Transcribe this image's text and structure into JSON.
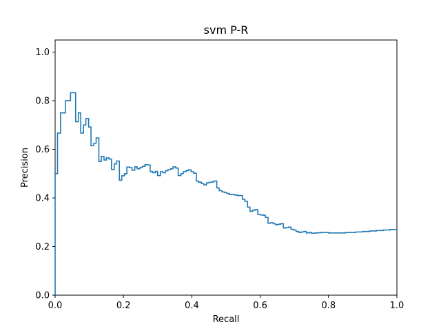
{
  "chart_data": {
    "type": "line",
    "step": "post",
    "title": "svm P-R",
    "xlabel": "Recall",
    "ylabel": "Precision",
    "xlim": [
      0.0,
      1.0
    ],
    "ylim": [
      0.0,
      1.05
    ],
    "grid": false,
    "xticks": [
      "0.0",
      "0.2",
      "0.4",
      "0.6",
      "0.8",
      "1.0"
    ],
    "yticks": [
      "0.0",
      "0.2",
      "0.4",
      "0.6",
      "0.8",
      "1.0"
    ],
    "line_color": "#1f77b4",
    "series": [
      {
        "x": [
          0.0,
          0.007,
          0.016,
          0.03,
          0.045,
          0.06,
          0.068,
          0.075,
          0.083,
          0.09,
          0.098,
          0.105,
          0.113,
          0.12,
          0.128,
          0.135,
          0.143,
          0.15,
          0.158,
          0.165,
          0.173,
          0.18,
          0.188,
          0.195,
          0.203,
          0.21,
          0.218,
          0.225,
          0.233,
          0.24,
          0.248,
          0.255,
          0.263,
          0.27,
          0.278,
          0.285,
          0.293,
          0.3,
          0.308,
          0.315,
          0.323,
          0.33,
          0.338,
          0.345,
          0.353,
          0.36,
          0.368,
          0.375,
          0.383,
          0.39,
          0.398,
          0.405,
          0.413,
          0.42,
          0.428,
          0.435,
          0.443,
          0.45,
          0.458,
          0.465,
          0.473,
          0.48,
          0.488,
          0.495,
          0.503,
          0.51,
          0.518,
          0.525,
          0.533,
          0.54,
          0.548,
          0.555,
          0.563,
          0.57,
          0.578,
          0.585,
          0.593,
          0.6,
          0.608,
          0.615,
          0.623,
          0.63,
          0.638,
          0.645,
          0.653,
          0.66,
          0.668,
          0.675,
          0.683,
          0.69,
          0.698,
          0.705,
          0.713,
          0.72,
          0.728,
          0.735,
          0.743,
          0.75,
          0.76,
          0.77,
          0.78,
          0.8,
          0.85,
          0.88,
          0.9,
          0.92,
          0.94,
          0.96,
          0.98,
          1.0
        ],
        "y": [
          0.5,
          0.667,
          0.75,
          0.8,
          0.833,
          0.714,
          0.75,
          0.667,
          0.7,
          0.727,
          0.692,
          0.615,
          0.625,
          0.647,
          0.55,
          0.571,
          0.556,
          0.565,
          0.56,
          0.517,
          0.54,
          0.552,
          0.473,
          0.491,
          0.5,
          0.527,
          0.525,
          0.514,
          0.528,
          0.52,
          0.525,
          0.53,
          0.537,
          0.536,
          0.509,
          0.504,
          0.509,
          0.492,
          0.508,
          0.504,
          0.512,
          0.516,
          0.52,
          0.528,
          0.523,
          0.492,
          0.5,
          0.508,
          0.512,
          0.516,
          0.508,
          0.502,
          0.469,
          0.465,
          0.459,
          0.454,
          0.462,
          0.464,
          0.466,
          0.47,
          0.441,
          0.43,
          0.425,
          0.422,
          0.418,
          0.414,
          0.414,
          0.412,
          0.41,
          0.41,
          0.395,
          0.386,
          0.362,
          0.345,
          0.35,
          0.352,
          0.332,
          0.33,
          0.329,
          0.32,
          0.296,
          0.298,
          0.294,
          0.29,
          0.292,
          0.294,
          0.276,
          0.278,
          0.28,
          0.271,
          0.268,
          0.262,
          0.258,
          0.26,
          0.262,
          0.256,
          0.258,
          0.255,
          0.256,
          0.257,
          0.258,
          0.256,
          0.258,
          0.26,
          0.262,
          0.264,
          0.266,
          0.268,
          0.27,
          0.272
        ]
      }
    ]
  }
}
